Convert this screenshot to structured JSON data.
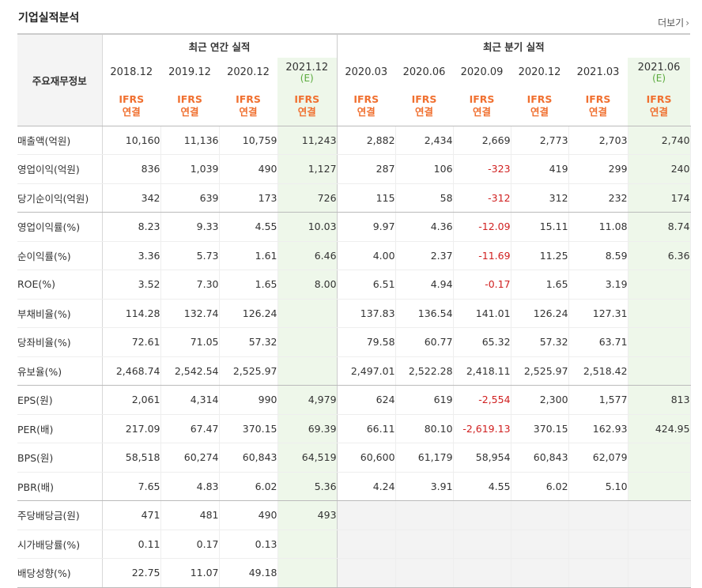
{
  "title": "기업실적분석",
  "more_label": "더보기",
  "header": {
    "label": "주요재무정보",
    "annual_label": "최근 연간 실적",
    "quarter_label": "최근 분기 실적",
    "annual": [
      {
        "date": "2018.12",
        "est": "",
        "ifrs1": "IFRS",
        "ifrs2": "연결"
      },
      {
        "date": "2019.12",
        "est": "",
        "ifrs1": "IFRS",
        "ifrs2": "연결"
      },
      {
        "date": "2020.12",
        "est": "",
        "ifrs1": "IFRS",
        "ifrs2": "연결"
      },
      {
        "date": "2021.12",
        "est": "(E)",
        "ifrs1": "IFRS",
        "ifrs2": "연결"
      }
    ],
    "quarter": [
      {
        "date": "2020.03",
        "est": "",
        "ifrs1": "IFRS",
        "ifrs2": "연결"
      },
      {
        "date": "2020.06",
        "est": "",
        "ifrs1": "IFRS",
        "ifrs2": "연결"
      },
      {
        "date": "2020.09",
        "est": "",
        "ifrs1": "IFRS",
        "ifrs2": "연결"
      },
      {
        "date": "2020.12",
        "est": "",
        "ifrs1": "IFRS",
        "ifrs2": "연결"
      },
      {
        "date": "2021.03",
        "est": "",
        "ifrs1": "IFRS",
        "ifrs2": "연결"
      },
      {
        "date": "2021.06",
        "est": "(E)",
        "ifrs1": "IFRS",
        "ifrs2": "연결"
      }
    ]
  },
  "rows": [
    {
      "label": "매출액(억원)",
      "annual": [
        "10,160",
        "11,136",
        "10,759",
        "11,243"
      ],
      "quarter": [
        "2,882",
        "2,434",
        "2,669",
        "2,773",
        "2,703",
        "2,740"
      ]
    },
    {
      "label": "영업이익(억원)",
      "annual": [
        "836",
        "1,039",
        "490",
        "1,127"
      ],
      "quarter": [
        "287",
        "106",
        "-323",
        "419",
        "299",
        "240"
      ]
    },
    {
      "label": "당기순이익(억원)",
      "annual": [
        "342",
        "639",
        "173",
        "726"
      ],
      "quarter": [
        "115",
        "58",
        "-312",
        "312",
        "232",
        "174"
      ]
    },
    {
      "label": "영업이익률(%)",
      "annual": [
        "8.23",
        "9.33",
        "4.55",
        "10.03"
      ],
      "quarter": [
        "9.97",
        "4.36",
        "-12.09",
        "15.11",
        "11.08",
        "8.74"
      ]
    },
    {
      "label": "순이익률(%)",
      "annual": [
        "3.36",
        "5.73",
        "1.61",
        "6.46"
      ],
      "quarter": [
        "4.00",
        "2.37",
        "-11.69",
        "11.25",
        "8.59",
        "6.36"
      ]
    },
    {
      "label": "ROE(%)",
      "annual": [
        "3.52",
        "7.30",
        "1.65",
        "8.00"
      ],
      "quarter": [
        "6.51",
        "4.94",
        "-0.17",
        "1.65",
        "3.19",
        ""
      ]
    },
    {
      "label": "부채비율(%)",
      "annual": [
        "114.28",
        "132.74",
        "126.24",
        ""
      ],
      "quarter": [
        "137.83",
        "136.54",
        "141.01",
        "126.24",
        "127.31",
        ""
      ]
    },
    {
      "label": "당좌비율(%)",
      "annual": [
        "72.61",
        "71.05",
        "57.32",
        ""
      ],
      "quarter": [
        "79.58",
        "60.77",
        "65.32",
        "57.32",
        "63.71",
        ""
      ]
    },
    {
      "label": "유보율(%)",
      "annual": [
        "2,468.74",
        "2,542.54",
        "2,525.97",
        ""
      ],
      "quarter": [
        "2,497.01",
        "2,522.28",
        "2,418.11",
        "2,525.97",
        "2,518.42",
        ""
      ]
    },
    {
      "label": "EPS(원)",
      "annual": [
        "2,061",
        "4,314",
        "990",
        "4,979"
      ],
      "quarter": [
        "624",
        "619",
        "-2,554",
        "2,300",
        "1,577",
        "813"
      ]
    },
    {
      "label": "PER(배)",
      "annual": [
        "217.09",
        "67.47",
        "370.15",
        "69.39"
      ],
      "quarter": [
        "66.11",
        "80.10",
        "-2,619.13",
        "370.15",
        "162.93",
        "424.95"
      ]
    },
    {
      "label": "BPS(원)",
      "annual": [
        "58,518",
        "60,274",
        "60,843",
        "64,519"
      ],
      "quarter": [
        "60,600",
        "61,179",
        "58,954",
        "60,843",
        "62,079",
        ""
      ]
    },
    {
      "label": "PBR(배)",
      "annual": [
        "7.65",
        "4.83",
        "6.02",
        "5.36"
      ],
      "quarter": [
        "4.24",
        "3.91",
        "4.55",
        "6.02",
        "5.10",
        ""
      ]
    },
    {
      "label": "주당배당금(원)",
      "annual": [
        "471",
        "481",
        "490",
        "493"
      ],
      "quarter": [
        "",
        "",
        "",
        "",
        "",
        ""
      ]
    },
    {
      "label": "시가배당률(%)",
      "annual": [
        "0.11",
        "0.17",
        "0.13",
        ""
      ],
      "quarter": [
        "",
        "",
        "",
        "",
        "",
        ""
      ]
    },
    {
      "label": "배당성향(%)",
      "annual": [
        "22.75",
        "11.07",
        "49.18",
        ""
      ],
      "quarter": [
        "",
        "",
        "",
        "",
        "",
        ""
      ]
    }
  ]
}
